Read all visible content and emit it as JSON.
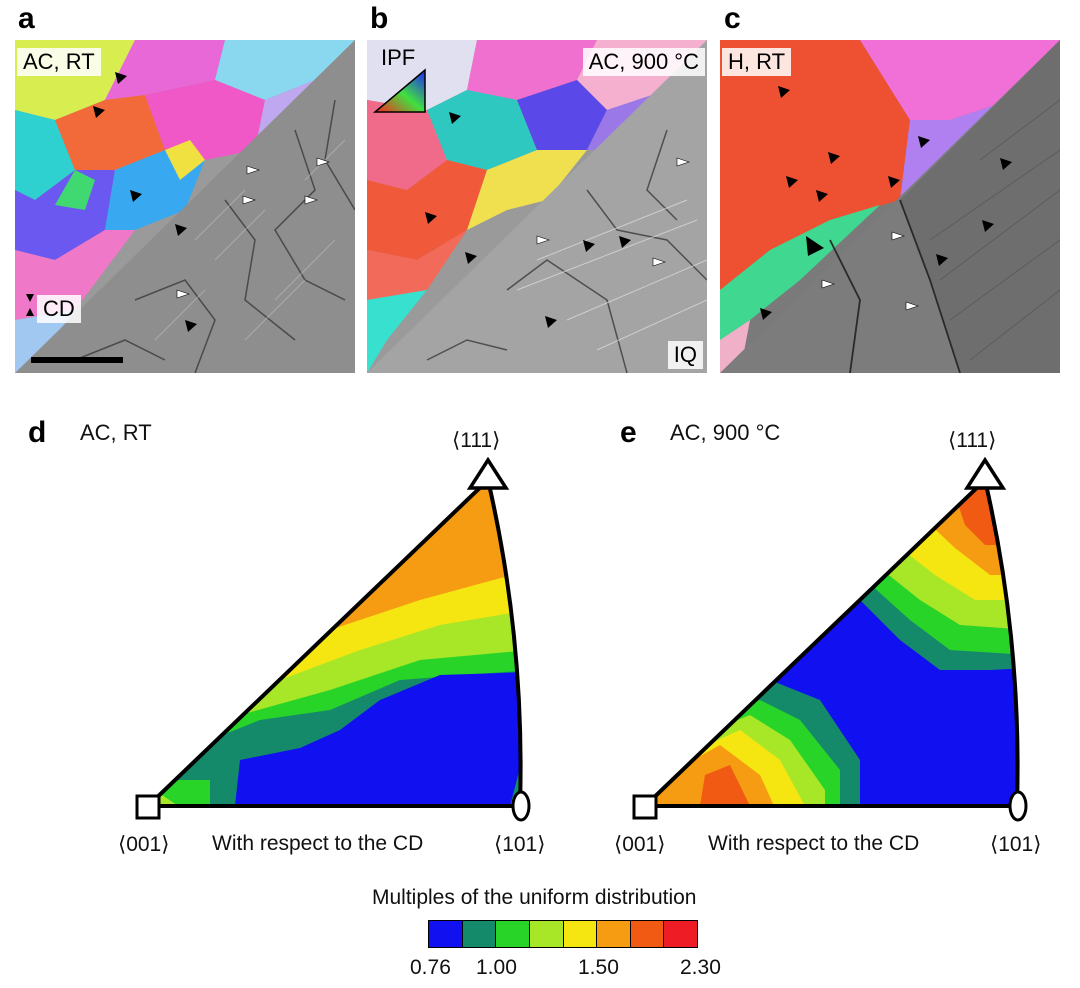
{
  "panels": {
    "a": {
      "letter": "a",
      "label": "AC, RT",
      "cd_label": "CD"
    },
    "b": {
      "letter": "b",
      "label": "AC, 900 °C",
      "ipf_label": "IPF",
      "iq_label": "IQ"
    },
    "c": {
      "letter": "c",
      "label": "H, RT"
    },
    "d": {
      "letter": "d",
      "label": "AC, RT"
    },
    "e": {
      "letter": "e",
      "label": "AC, 900 °C"
    }
  },
  "pole_figure_labels": {
    "vertex_111": "⟨111⟩",
    "vertex_001": "⟨001⟩",
    "vertex_101": "⟨101⟩",
    "axis": "With respect to the CD"
  },
  "colorbar": {
    "title": "Multiples of the uniform distribution",
    "tick_labels": [
      "0.76",
      "1.00",
      "1.50",
      "2.30"
    ],
    "colors": [
      "#1010f0",
      "#158a6a",
      "#28d428",
      "#a8e628",
      "#f5e612",
      "#f59c12",
      "#f05a12",
      "#ee1c24"
    ]
  }
}
